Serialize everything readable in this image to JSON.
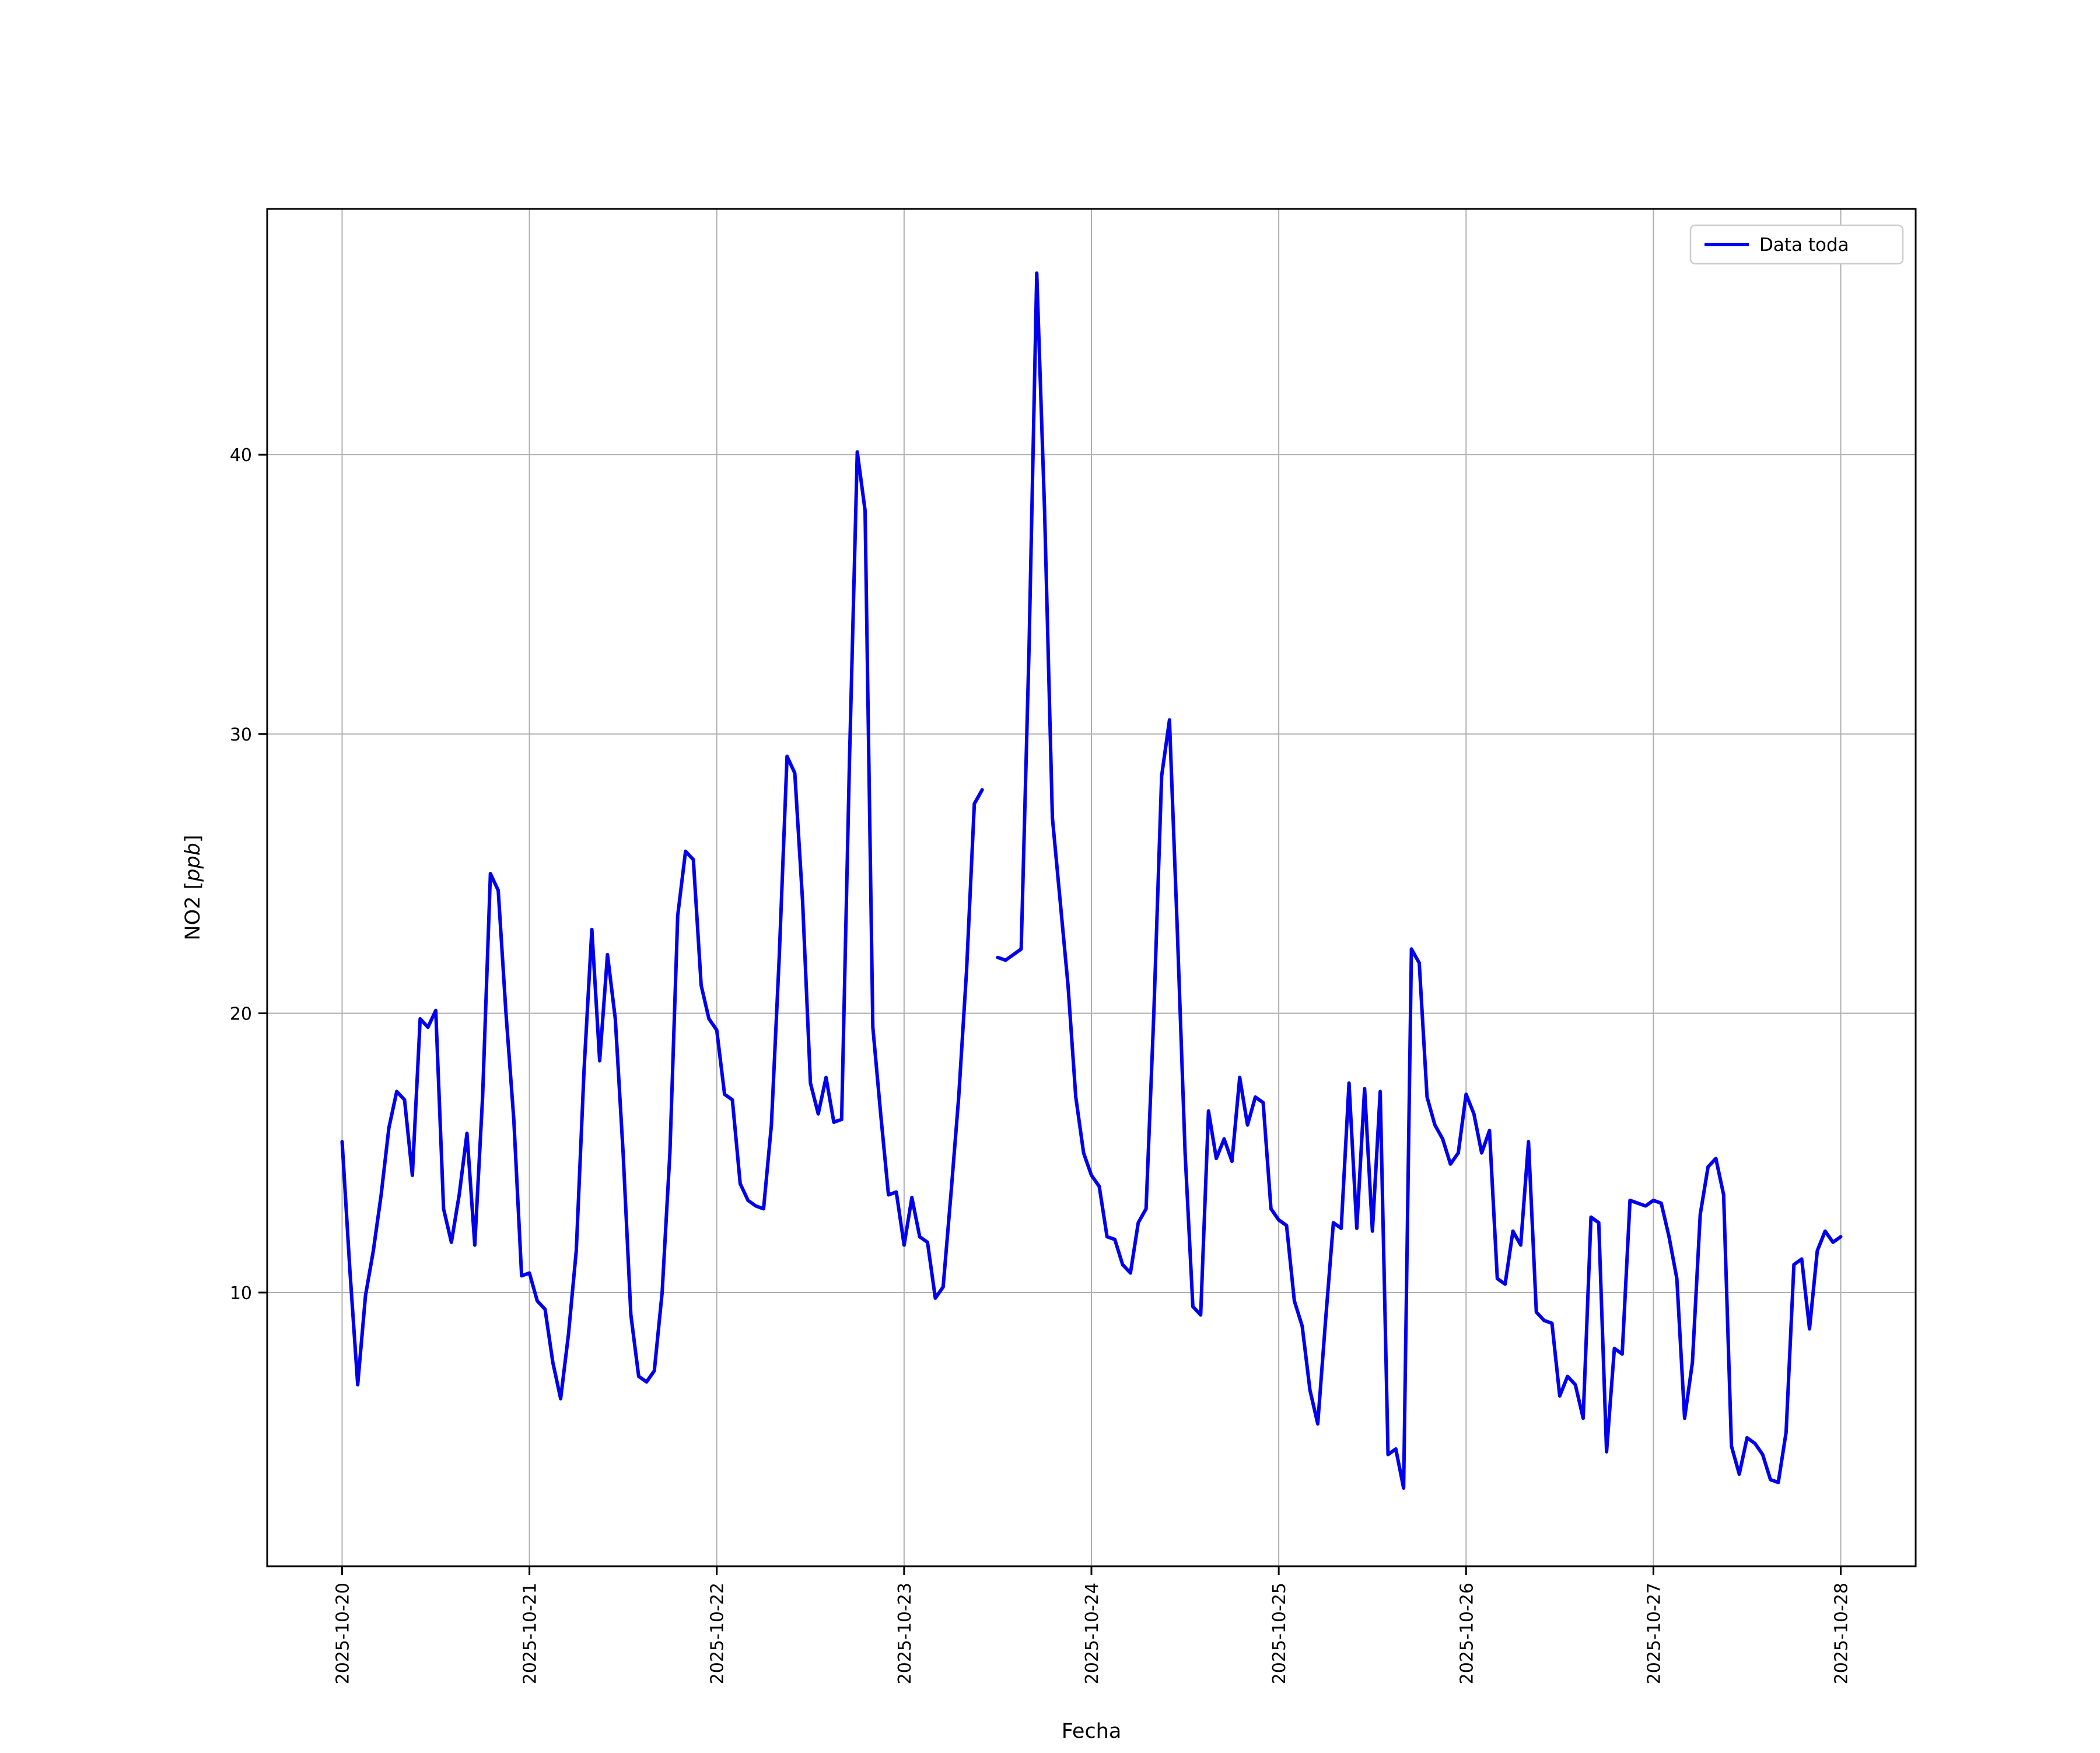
{
  "figure": {
    "background_color": "#ffffff"
  },
  "chart_data": {
    "type": "line",
    "title": "",
    "xlabel": "Fecha",
    "ylabel": "NO2 [ppb]",
    "ylabel_parts": {
      "prefix": "NO2 [",
      "italic": "ppb",
      "suffix": "]"
    },
    "grid": true,
    "legend": {
      "position": "upper right",
      "entries": [
        {
          "label": "Data toda",
          "color": "#0000ee"
        }
      ]
    },
    "x_tick_labels": [
      "2025-10-20",
      "2025-10-21",
      "2025-10-22",
      "2025-10-23",
      "2025-10-24",
      "2025-10-25",
      "2025-10-26",
      "2025-10-27",
      "2025-10-28"
    ],
    "x_tick_rotation_deg": 90,
    "y_ticks": [
      10,
      20,
      30,
      40
    ],
    "ylim": [
      0.2,
      48.8
    ],
    "xlim_days": [
      -0.4,
      8.4
    ],
    "samples_per_day": 24,
    "series": [
      {
        "name": "Data toda",
        "color": "#0000ee",
        "unit": "ppb",
        "start": "2025-10-20",
        "interval_hours": 1,
        "values": [
          15.4,
          10.8,
          6.7,
          9.9,
          11.5,
          13.5,
          15.9,
          17.2,
          16.9,
          14.2,
          19.8,
          19.5,
          20.1,
          13.0,
          11.8,
          13.5,
          15.7,
          11.7,
          17.0,
          25.0,
          24.4,
          20.0,
          16.2,
          10.6,
          10.7,
          9.7,
          9.4,
          7.5,
          6.2,
          8.5,
          11.5,
          18.0,
          23.0,
          18.3,
          22.1,
          19.8,
          15.0,
          9.2,
          7.0,
          6.8,
          7.2,
          10.0,
          15.0,
          23.5,
          25.8,
          25.5,
          21.0,
          19.8,
          19.4,
          17.1,
          16.9,
          13.9,
          13.3,
          13.1,
          13.0,
          16.0,
          22.0,
          29.2,
          28.6,
          24.0,
          17.5,
          16.4,
          17.7,
          16.1,
          16.2,
          29.0,
          40.1,
          38.0,
          19.5,
          16.4,
          13.5,
          13.6,
          11.7,
          13.4,
          12.0,
          11.8,
          9.8,
          10.2,
          13.5,
          17.0,
          21.5,
          27.5,
          28.0,
          null,
          22.0,
          21.9,
          22.1,
          22.3,
          33.0,
          46.5,
          38.0,
          27.0,
          24.0,
          21.0,
          17.0,
          15.0,
          14.2,
          13.8,
          12.0,
          11.9,
          11.0,
          10.7,
          12.5,
          13.0,
          20.0,
          28.5,
          30.5,
          23.0,
          15.0,
          9.5,
          9.2,
          16.5,
          14.8,
          15.5,
          14.7,
          17.7,
          16.0,
          17.0,
          16.8,
          13.0,
          12.6,
          12.4,
          9.7,
          8.8,
          6.5,
          5.3,
          9.0,
          12.5,
          12.3,
          17.5,
          12.3,
          17.3,
          12.2,
          17.2,
          4.2,
          4.4,
          3.0,
          22.3,
          21.8,
          17.0,
          16.0,
          15.5,
          14.6,
          15.0,
          17.1,
          16.4,
          15.0,
          15.8,
          10.5,
          10.3,
          12.2,
          11.7,
          15.4,
          9.3,
          9.0,
          8.9,
          6.3,
          7.0,
          6.7,
          5.5,
          12.7,
          12.5,
          4.3,
          8.0,
          7.8,
          13.3,
          13.2,
          13.1,
          13.3,
          13.2,
          12.0,
          10.5,
          5.5,
          7.5,
          12.8,
          14.5,
          14.8,
          13.5,
          4.5,
          3.5,
          4.8,
          4.6,
          4.2,
          3.3,
          3.2,
          5.0,
          11.0,
          11.2,
          8.7,
          11.5,
          12.2,
          11.8,
          12.0
        ]
      }
    ]
  }
}
